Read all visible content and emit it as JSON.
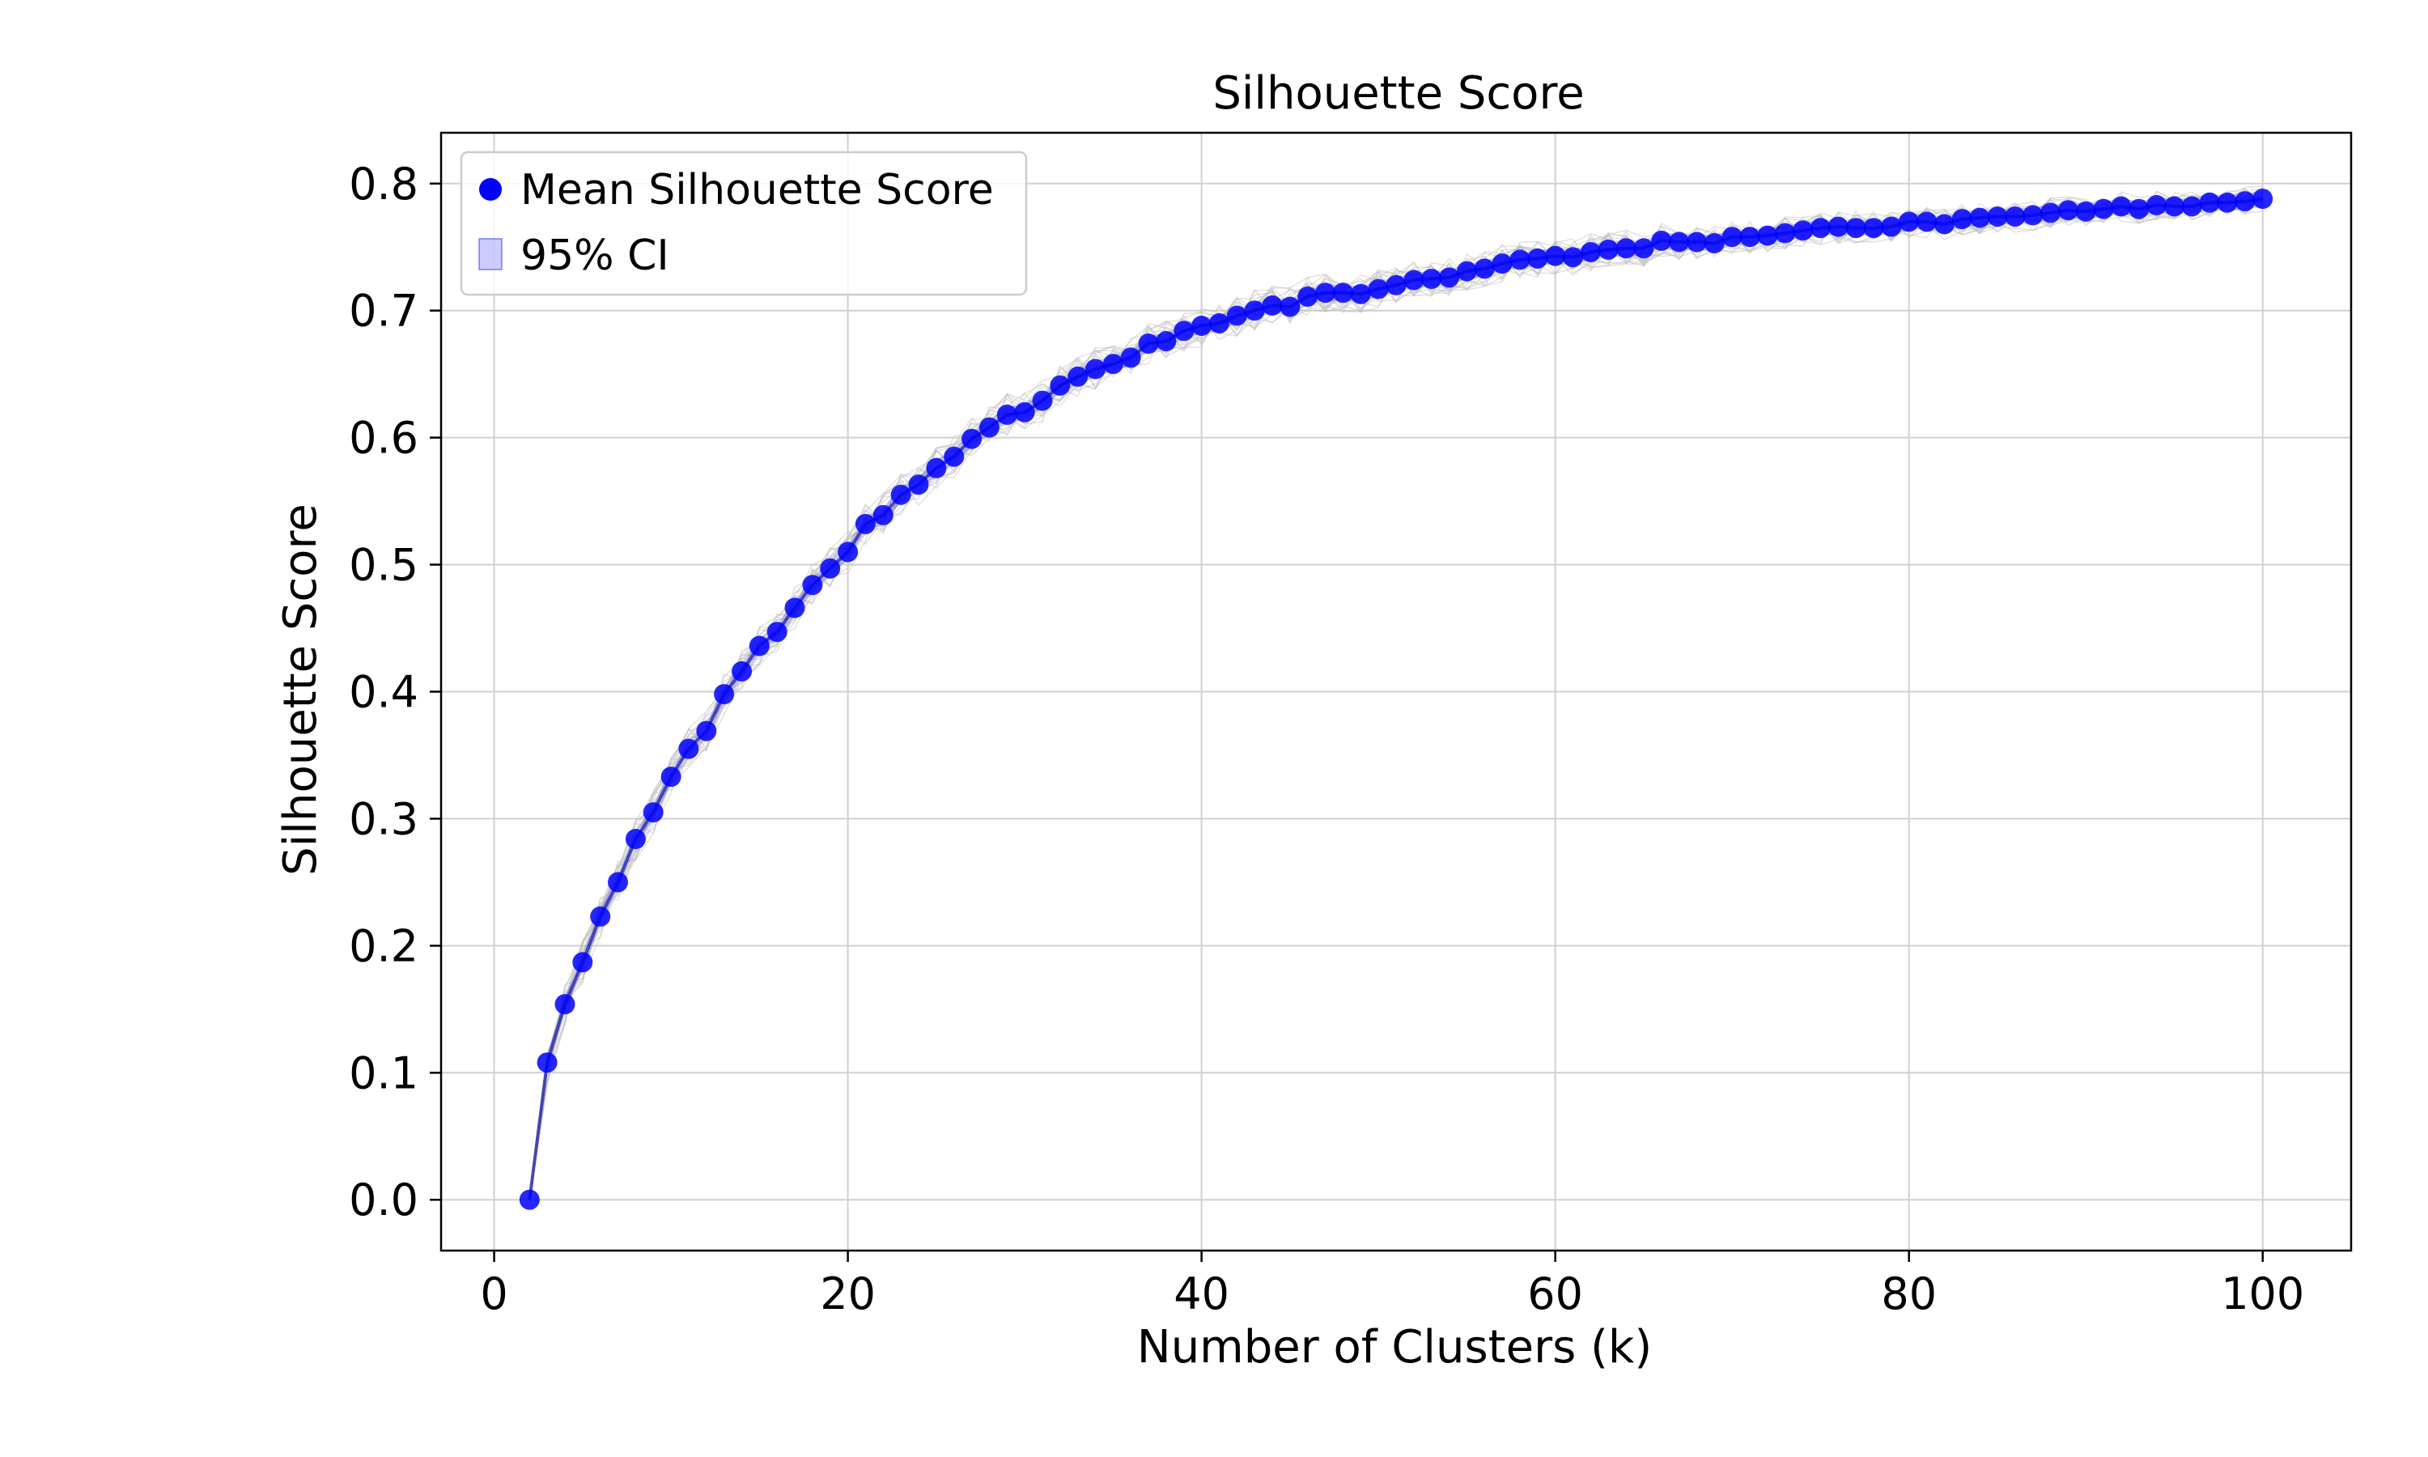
{
  "chart_data": {
    "type": "line",
    "title": "Silhouette Score",
    "xlabel": "Number of Clusters (k)",
    "ylabel": "Silhouette Score",
    "xlim": [
      -3,
      105
    ],
    "ylim": [
      -0.04,
      0.84
    ],
    "xticks": [
      0,
      20,
      40,
      60,
      80,
      100
    ],
    "xtick_labels": [
      "0",
      "20",
      "40",
      "60",
      "80",
      "100"
    ],
    "yticks": [
      0.0,
      0.1,
      0.2,
      0.3,
      0.4,
      0.5,
      0.6,
      0.7,
      0.8
    ],
    "ytick_labels": [
      "0.0",
      "0.1",
      "0.2",
      "0.3",
      "0.4",
      "0.5",
      "0.6",
      "0.7",
      "0.8"
    ],
    "grid": true,
    "legend_position": "top-left",
    "legend": [
      {
        "label": "Mean Silhouette Score",
        "marker": "circle",
        "color": "#0000ff"
      },
      {
        "label": "95% CI",
        "marker": "patch",
        "color": "#0000ff"
      }
    ],
    "colors": {
      "mean": "#0000ff",
      "ci_fill": "#0000ff",
      "runs": "#bdbdbd",
      "grid": "#d0d0d0"
    },
    "series": [
      {
        "name": "Mean Silhouette Score",
        "x": [
          2,
          3,
          4,
          5,
          6,
          7,
          8,
          9,
          10,
          11,
          12,
          13,
          14,
          15,
          16,
          17,
          18,
          19,
          20,
          21,
          22,
          23,
          24,
          25,
          26,
          27,
          28,
          29,
          30,
          31,
          32,
          33,
          34,
          35,
          36,
          37,
          38,
          39,
          40,
          41,
          42,
          43,
          44,
          45,
          46,
          47,
          48,
          49,
          50,
          51,
          52,
          53,
          54,
          55,
          56,
          57,
          58,
          59,
          60,
          61,
          62,
          63,
          64,
          65,
          66,
          67,
          68,
          69,
          70,
          71,
          72,
          73,
          74,
          75,
          76,
          77,
          78,
          79,
          80,
          81,
          82,
          83,
          84,
          85,
          86,
          87,
          88,
          89,
          90,
          91,
          92,
          93,
          94,
          95,
          96,
          97,
          98,
          99,
          100
        ],
        "y": [
          0.0,
          0.108,
          0.154,
          0.187,
          0.223,
          0.25,
          0.284,
          0.305,
          0.333,
          0.355,
          0.369,
          0.398,
          0.416,
          0.436,
          0.447,
          0.466,
          0.484,
          0.497,
          0.51,
          0.532,
          0.539,
          0.555,
          0.563,
          0.576,
          0.585,
          0.599,
          0.608,
          0.618,
          0.62,
          0.629,
          0.641,
          0.648,
          0.654,
          0.658,
          0.663,
          0.674,
          0.676,
          0.684,
          0.688,
          0.69,
          0.696,
          0.7,
          0.704,
          0.703,
          0.711,
          0.714,
          0.714,
          0.713,
          0.717,
          0.72,
          0.724,
          0.725,
          0.726,
          0.731,
          0.733,
          0.737,
          0.74,
          0.741,
          0.743,
          0.742,
          0.746,
          0.748,
          0.749,
          0.749,
          0.755,
          0.754,
          0.754,
          0.753,
          0.758,
          0.758,
          0.759,
          0.761,
          0.763,
          0.765,
          0.766,
          0.765,
          0.765,
          0.766,
          0.77,
          0.77,
          0.768,
          0.772,
          0.773,
          0.774,
          0.774,
          0.775,
          0.777,
          0.779,
          0.778,
          0.78,
          0.782,
          0.78,
          0.783,
          0.782,
          0.782,
          0.785,
          0.785,
          0.786,
          0.788
        ]
      }
    ],
    "ci_halfwidth": [
      0.0,
      0.006,
      0.006,
      0.006,
      0.006,
      0.006,
      0.006,
      0.006,
      0.006,
      0.006,
      0.006,
      0.006,
      0.006,
      0.006,
      0.006,
      0.006,
      0.006,
      0.006,
      0.006,
      0.006,
      0.006,
      0.006,
      0.006,
      0.006,
      0.006,
      0.006,
      0.006,
      0.006,
      0.006,
      0.006,
      0.006,
      0.006,
      0.006,
      0.006,
      0.006,
      0.006,
      0.006,
      0.006,
      0.006,
      0.006,
      0.006,
      0.006,
      0.006,
      0.006,
      0.006,
      0.006,
      0.006,
      0.006,
      0.006,
      0.006,
      0.006,
      0.006,
      0.006,
      0.006,
      0.006,
      0.006,
      0.006,
      0.006,
      0.006,
      0.006,
      0.006,
      0.006,
      0.006,
      0.006,
      0.006,
      0.006,
      0.006,
      0.006,
      0.006,
      0.006,
      0.006,
      0.006,
      0.006,
      0.006,
      0.006,
      0.006,
      0.006,
      0.006,
      0.006,
      0.006,
      0.006,
      0.006,
      0.006,
      0.006,
      0.006,
      0.006,
      0.006,
      0.006,
      0.006,
      0.006,
      0.006,
      0.006,
      0.006,
      0.006,
      0.006,
      0.006,
      0.006,
      0.006,
      0.006
    ],
    "background_runs": 20,
    "background_noise": 0.012
  }
}
